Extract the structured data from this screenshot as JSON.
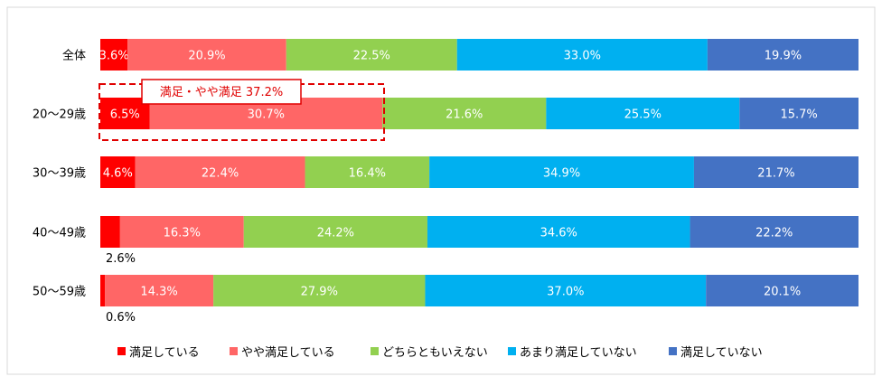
{
  "chart_data": {
    "type": "bar",
    "orientation": "horizontal-stacked-100",
    "categories": [
      "全体",
      "20～29歳",
      "30～39歳",
      "40～49歳",
      "50～59歳"
    ],
    "series": [
      {
        "name": "満足している",
        "color": "#FF0000",
        "values": [
          3.6,
          6.5,
          4.6,
          2.6,
          0.6
        ]
      },
      {
        "name": "やや満足している",
        "color": "#FF6666",
        "values": [
          20.9,
          30.7,
          22.4,
          16.3,
          14.3
        ]
      },
      {
        "name": "どちらともいえない",
        "color": "#92D050",
        "values": [
          22.5,
          21.6,
          16.4,
          24.2,
          27.9
        ]
      },
      {
        "name": "あまり満足していない",
        "color": "#00B0F0",
        "values": [
          33.0,
          25.5,
          34.9,
          34.6,
          37.0
        ]
      },
      {
        "name": "満足していない",
        "color": "#4472C4",
        "values": [
          19.9,
          15.7,
          21.7,
          22.2,
          20.1
        ]
      }
    ],
    "unit": "%",
    "xlim": [
      0,
      100
    ],
    "legend": "bottom",
    "annotation": {
      "category": "20～29歳",
      "text": "満足・やや満足 37.2%",
      "color": "#E00000"
    }
  }
}
